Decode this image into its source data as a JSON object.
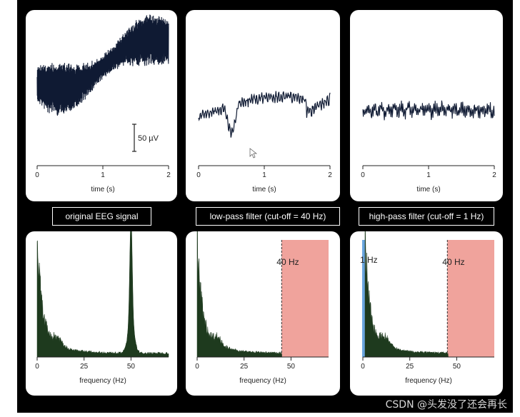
{
  "top_row": [
    {
      "title": "",
      "xlabel": "time (s)",
      "ticks": [
        "0",
        "1",
        "2"
      ],
      "scalebar": "50 µV"
    },
    {
      "title": "",
      "xlabel": "time (s)",
      "ticks": [
        "0",
        "1",
        "2"
      ]
    },
    {
      "title": "",
      "xlabel": "time (s)",
      "ticks": [
        "0",
        "1",
        "2"
      ]
    }
  ],
  "labels": [
    "original EEG signal",
    "low-pass filter (cut-off = 40 Hz)",
    "high-pass filter (cut-off = 1 Hz)"
  ],
  "bottom_row": [
    {
      "xlabel": "frequency (Hz)",
      "ticks": [
        "0",
        "25",
        "50"
      ]
    },
    {
      "xlabel": "frequency (Hz)",
      "ticks": [
        "0",
        "25",
        "50"
      ],
      "cutoff_label": "40 Hz"
    },
    {
      "xlabel": "frequency (Hz)",
      "ticks": [
        "0",
        "25",
        "50"
      ],
      "cutoff_label_low": "1 Hz",
      "cutoff_label_high": "40 Hz"
    }
  ],
  "colors": {
    "signal": "#0f1a33",
    "spectrum": "#1e3a1e",
    "lowpass_band": "#f0a39c",
    "highpass_band": "#6aa6e0"
  },
  "watermark": "CSDN @头发没了还会再长",
  "chart_data": [
    {
      "type": "line",
      "title": "",
      "xlabel": "time (s)",
      "x_range": [
        0,
        2
      ]
    },
    {
      "type": "line",
      "title": "",
      "xlabel": "time (s)",
      "x_range": [
        0,
        2
      ]
    },
    {
      "type": "line",
      "title": "",
      "xlabel": "time (s)",
      "x_range": [
        0,
        2
      ]
    },
    {
      "type": "area",
      "xlabel": "frequency (Hz)",
      "x_range": [
        0,
        70
      ],
      "peaks": [
        0,
        50
      ]
    },
    {
      "type": "area",
      "xlabel": "frequency (Hz)",
      "x_range": [
        0,
        70
      ],
      "shaded_from": 40
    },
    {
      "type": "area",
      "xlabel": "frequency (Hz)",
      "x_range": [
        0,
        70
      ],
      "shaded_below": 1,
      "shaded_from": 40
    }
  ]
}
